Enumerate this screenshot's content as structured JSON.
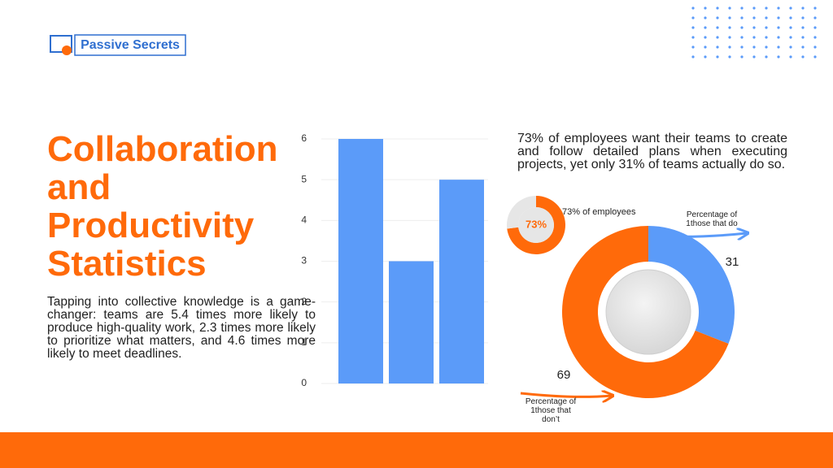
{
  "logo": {
    "text": "Passive Secrets"
  },
  "title": "Collaboration and Productivity Statistics",
  "body": "Tapping into collective knowledge is a game-changer: teams are 5.4 times more likely to produce high-quality work, 2.3 times more likely to prioritize what matters, and 4.6 times more likely to meet deadlines.",
  "chart_data": [
    {
      "type": "bar",
      "categories": [
        null,
        null,
        null
      ],
      "values": [
        6,
        3,
        5
      ],
      "color": "#5b9bf9",
      "ylim": [
        0,
        6
      ],
      "yticks": [
        0,
        1,
        2,
        3,
        4,
        5,
        6
      ],
      "grid": true
    },
    {
      "type": "donut",
      "values": [
        73,
        27
      ],
      "value_labels": [
        "73%",
        null
      ],
      "colors": [
        "#ff6a0a",
        "#e6e6e6"
      ],
      "label": "73% of employees"
    },
    {
      "type": "donut",
      "title": "73% of employees want their teams to create and follow detailed plans when executing projects, yet only 31% of teams actually do so.",
      "values": [
        31,
        69
      ],
      "colors": [
        "#5b9bf9",
        "#ff6a0a"
      ],
      "labels": [
        "Percentage of 1those that do",
        "Percentage of 1those that don’t"
      ]
    }
  ]
}
